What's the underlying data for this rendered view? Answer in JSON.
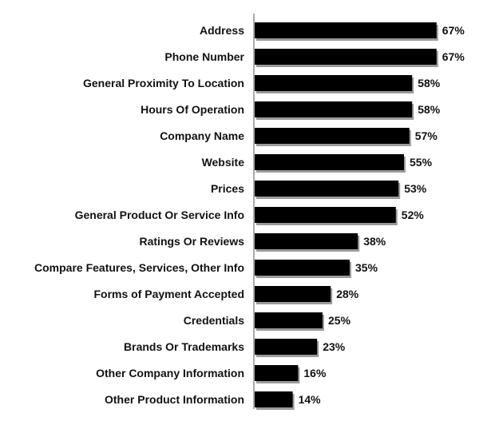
{
  "chart_data": {
    "type": "bar",
    "orientation": "horizontal",
    "categories": [
      "Address",
      "Phone Number",
      "General Proximity To Location",
      "Hours Of Operation",
      "Company Name",
      "Website",
      "Prices",
      "General Product Or Service Info",
      "Ratings Or Reviews",
      "Compare Features, Services, Other Info",
      "Forms of Payment Accepted",
      "Credentials",
      "Brands Or Trademarks",
      "Other Company Information",
      "Other Product Information"
    ],
    "values": [
      67,
      67,
      58,
      58,
      57,
      55,
      53,
      52,
      38,
      35,
      28,
      25,
      23,
      16,
      14
    ],
    "value_labels": [
      "67%",
      "67%",
      "58%",
      "58%",
      "57%",
      "55%",
      "53%",
      "52%",
      "38%",
      "35%",
      "28%",
      "25%",
      "23%",
      "16%",
      "14%"
    ],
    "title": "",
    "xlabel": "",
    "ylabel": "",
    "xlim": [
      0,
      100
    ],
    "grid": false,
    "legend": "none",
    "bar_color": "#000000",
    "axis_color": "#555555"
  }
}
